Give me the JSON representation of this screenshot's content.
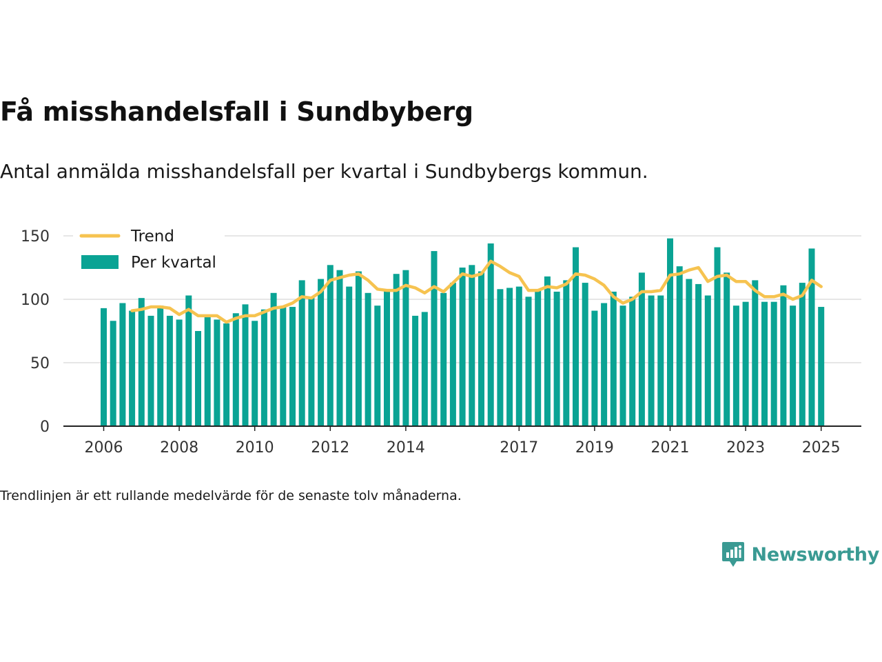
{
  "title": "Få misshandelsfall i Sundbyberg",
  "subtitle": "Antal anmälda misshandelsfall per kvartal i Sundbybergs kommun.",
  "note": "Trendlinjen är ett rullande medelvärde för de senaste tolv månaderna.",
  "brand": {
    "name": "Newsworthy",
    "icon": "newsworthy-logo-icon"
  },
  "colors": {
    "bars": "#0aa394",
    "trend": "#f6c350",
    "grid": "#dddddd",
    "axis": "#222222"
  },
  "chart_data": {
    "type": "bar",
    "title": "Få misshandelsfall i Sundbyberg",
    "ylim": [
      0,
      150
    ],
    "yticks": [
      0,
      50,
      100,
      150
    ],
    "xticks": [
      "2006",
      "2008",
      "2010",
      "2012",
      "2014",
      "2017",
      "2019",
      "2021",
      "2023",
      "2025"
    ],
    "grid": true,
    "legend_position": "top-left",
    "series": [
      {
        "name": "Per kvartal",
        "type": "bar",
        "values": [
          93,
          83,
          97,
          91,
          101,
          87,
          95,
          87,
          84,
          103,
          75,
          88,
          84,
          81,
          89,
          96,
          83,
          92,
          105,
          94,
          94,
          115,
          102,
          116,
          127,
          123,
          110,
          122,
          105,
          95,
          108,
          120,
          123,
          87,
          90,
          138,
          105,
          113,
          125,
          127,
          122,
          144,
          108,
          109,
          110,
          102,
          108,
          118,
          106,
          115,
          141,
          113,
          91,
          97,
          106,
          95,
          102,
          121,
          103,
          103,
          148,
          126,
          116,
          112,
          103,
          141,
          121,
          95,
          98,
          115,
          98,
          98,
          111,
          95,
          113,
          140,
          94
        ]
      },
      {
        "name": "Trend",
        "type": "line",
        "values": [
          null,
          null,
          null,
          91,
          92,
          94,
          94,
          93,
          88,
          92,
          87,
          87,
          87,
          82,
          85,
          87,
          87,
          90,
          93,
          94,
          97,
          102,
          101,
          106,
          115,
          117,
          119,
          120,
          115,
          108,
          107,
          107,
          111,
          109,
          105,
          110,
          106,
          113,
          120,
          118,
          120,
          130,
          126,
          121,
          118,
          107,
          107,
          110,
          109,
          112,
          120,
          119,
          116,
          111,
          102,
          97,
          100,
          106,
          106,
          107,
          119,
          120,
          123,
          125,
          114,
          118,
          119,
          114,
          114,
          107,
          102,
          102,
          104,
          100,
          103,
          115,
          110
        ]
      }
    ]
  }
}
